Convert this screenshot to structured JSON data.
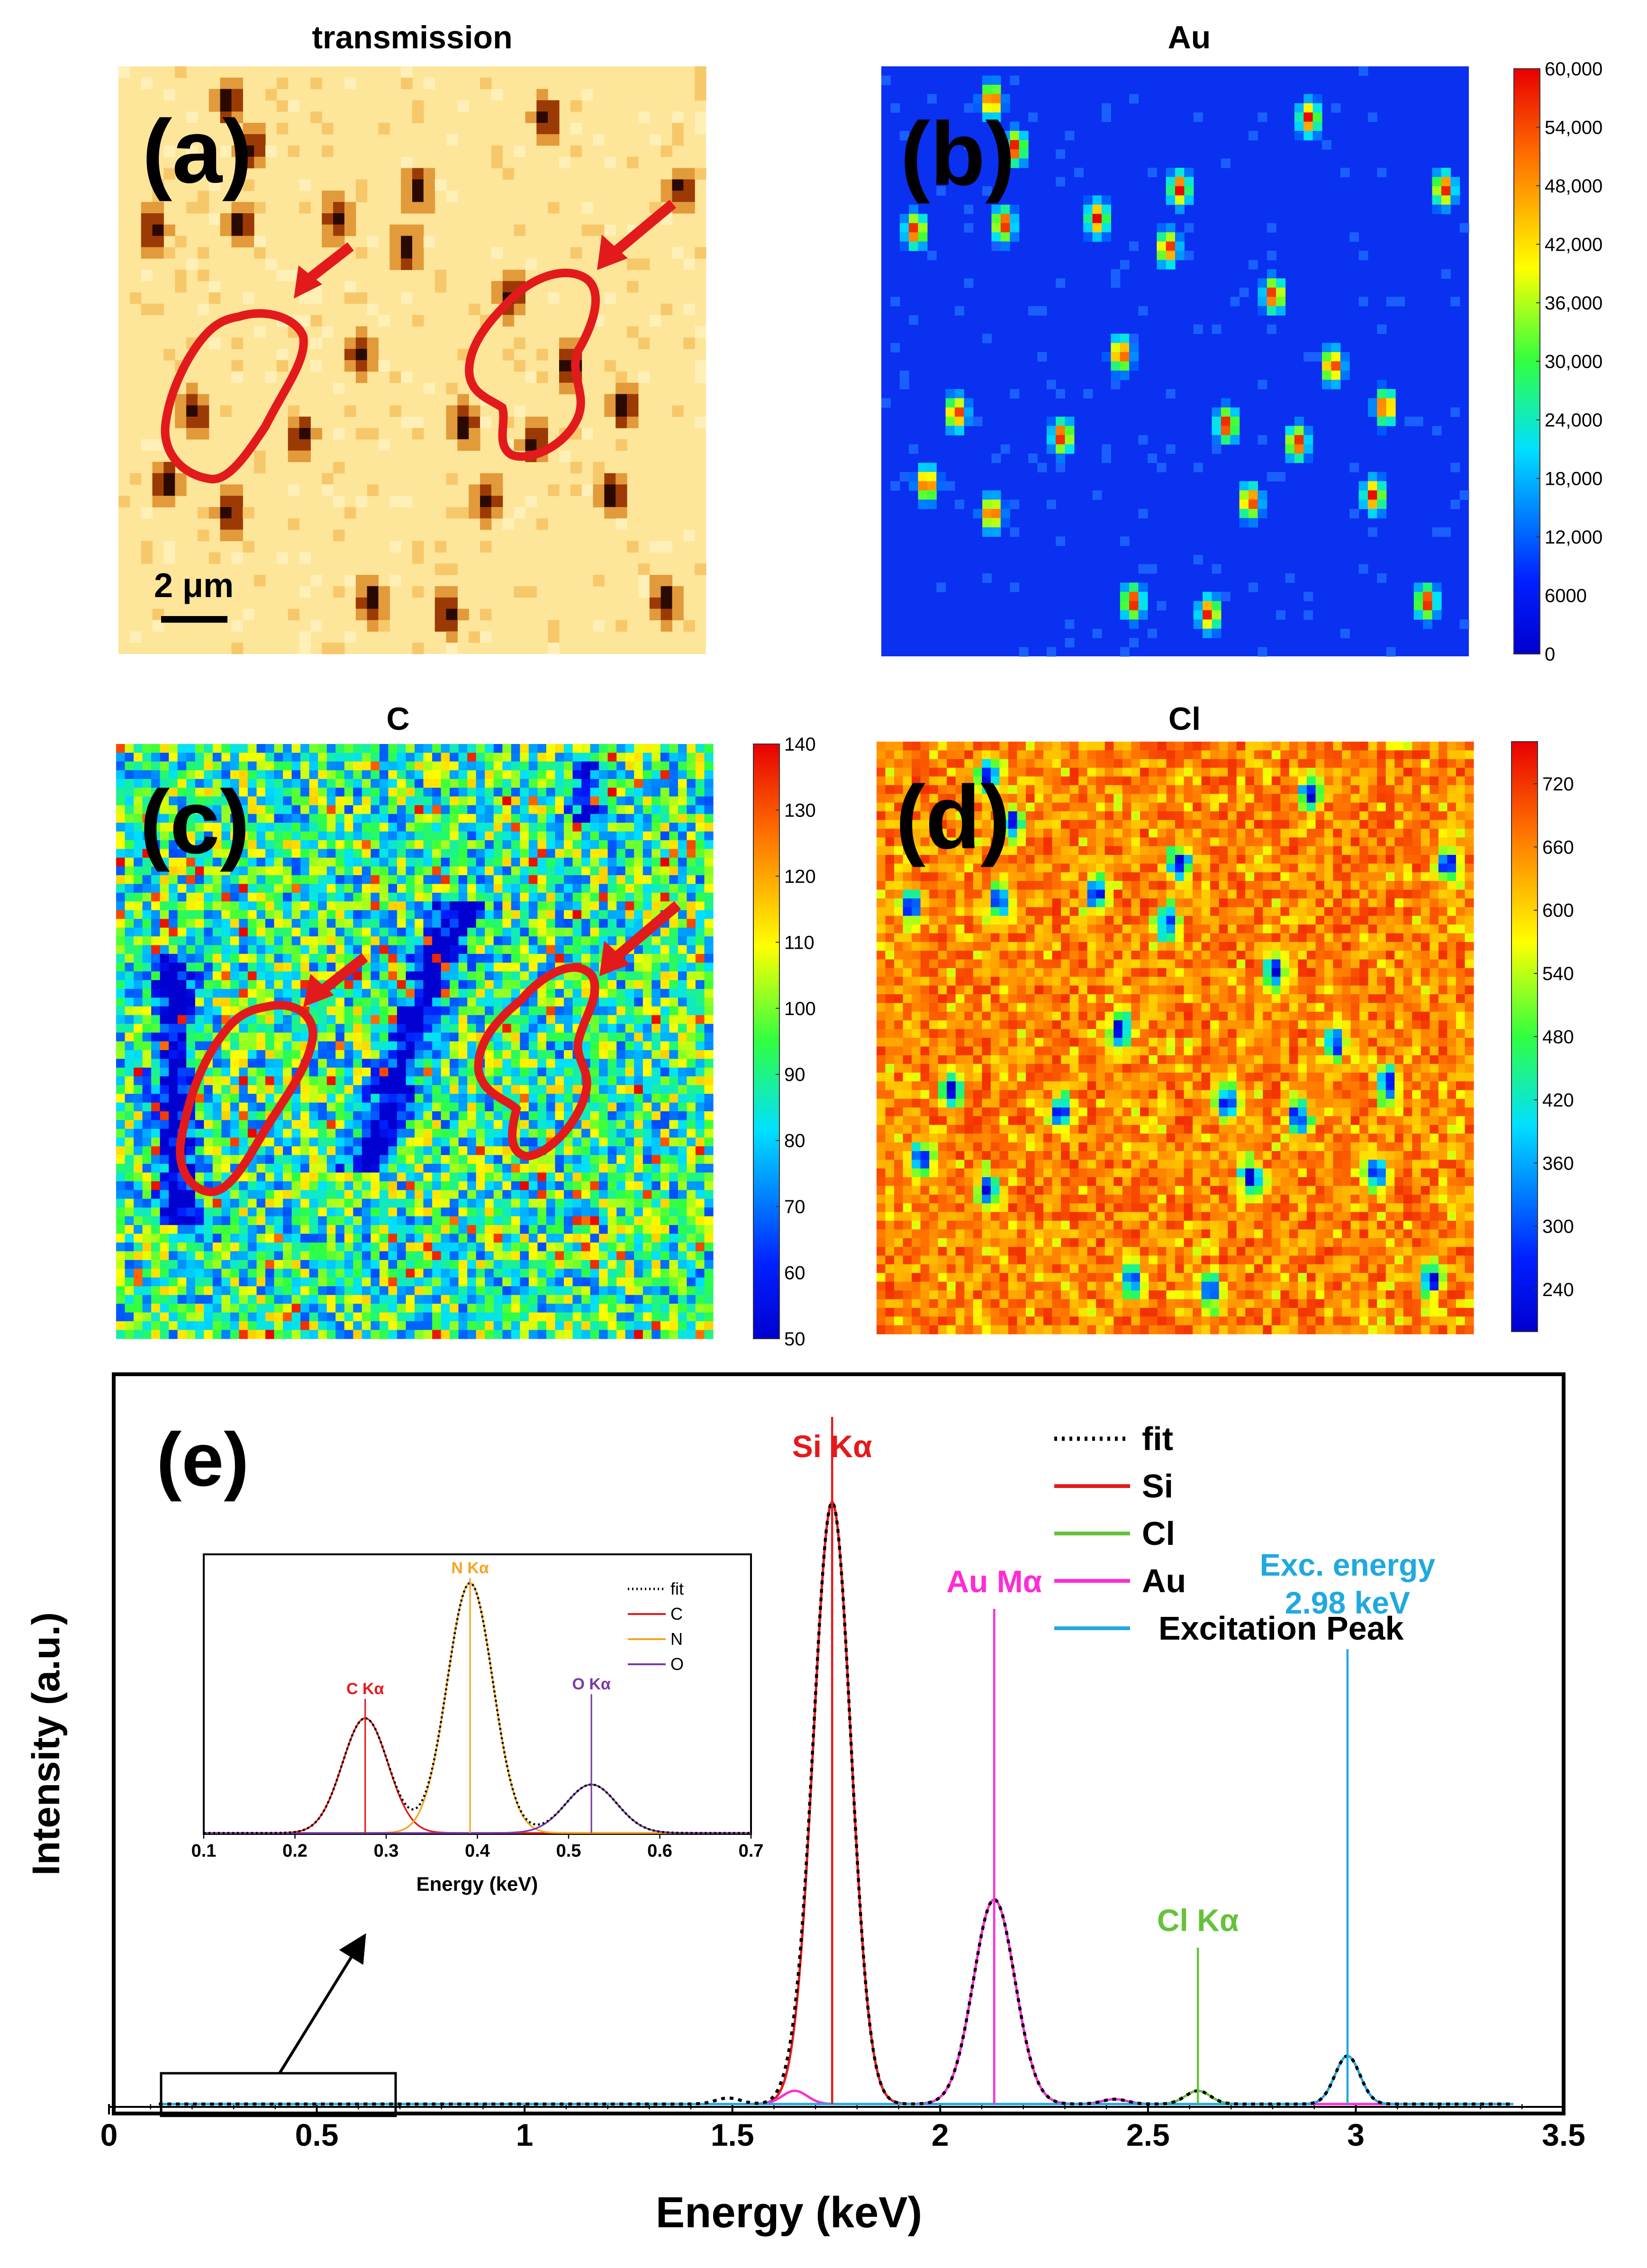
{
  "panels": {
    "a": {
      "title": "transmission",
      "label": "(a)",
      "scalebar": "2 μm"
    },
    "b": {
      "title": "Au",
      "label": "(b)"
    },
    "c": {
      "title": "C",
      "label": "(c)"
    },
    "d": {
      "title": "Cl",
      "label": "(d)"
    },
    "e": {
      "label": "(e)"
    }
  },
  "colorbars": {
    "b": {
      "ticks": [
        "0",
        "6000",
        "12,000",
        "18,000",
        "24,000",
        "30,000",
        "36,000",
        "42,000",
        "48,000",
        "54,000",
        "60,000"
      ],
      "min": 0,
      "max": 60000
    },
    "c": {
      "ticks": [
        "50",
        "60",
        "70",
        "80",
        "90",
        "100",
        "110",
        "120",
        "130",
        "140"
      ],
      "min": 50,
      "max": 140
    },
    "d": {
      "ticks": [
        "240",
        "300",
        "360",
        "420",
        "480",
        "540",
        "600",
        "660",
        "720"
      ],
      "min": 200,
      "max": 760
    }
  },
  "chart_data": [
    {
      "type": "line",
      "id": "main-spectrum",
      "xlabel": "Energy (keV)",
      "ylabel": "Intensity (a.u.)",
      "xlim": [
        0,
        3.5
      ],
      "ylim": [
        0,
        1.0
      ],
      "xticks": [
        "0",
        "0.5",
        "1",
        "1.5",
        "2",
        "2.5",
        "3",
        "3.5"
      ],
      "series": [
        {
          "name": "fit",
          "color": "#000000",
          "style": "dotted"
        },
        {
          "name": "Si",
          "color": "#e31a1c",
          "peaks": [
            {
              "center": 1.74,
              "height": 1.0,
              "width": 0.045
            }
          ]
        },
        {
          "name": "Cl",
          "color": "#66c23a",
          "peaks": [
            {
              "center": 2.62,
              "height": 0.022,
              "width": 0.03
            }
          ]
        },
        {
          "name": "Au",
          "color": "#ff2bd6",
          "peaks": [
            {
              "center": 2.13,
              "height": 0.34,
              "width": 0.05
            },
            {
              "center": 1.65,
              "height": 0.022,
              "width": 0.03
            },
            {
              "center": 2.42,
              "height": 0.008,
              "width": 0.03
            }
          ]
        },
        {
          "name": "Excitation Peak",
          "color": "#1fa9e1",
          "peaks": [
            {
              "center": 2.98,
              "height": 0.08,
              "width": 0.03
            }
          ]
        }
      ],
      "annotations": [
        {
          "text": "Si Kα",
          "x": 1.74,
          "color": "#e31a1c"
        },
        {
          "text": "Au Mα",
          "x": 2.13,
          "color": "#ff2bd6"
        },
        {
          "text": "Cl Kα",
          "x": 2.62,
          "color": "#66c23a"
        },
        {
          "text": "Exc. energy",
          "x": 2.98,
          "color": "#1fa9e1"
        },
        {
          "text": "2.98 keV",
          "x": 2.98,
          "color": "#1fa9e1"
        }
      ],
      "legend_labels": [
        "fit",
        "Si",
        "Cl",
        "Au",
        "Excitation Peak"
      ]
    },
    {
      "type": "line",
      "id": "inset-spectrum",
      "xlabel": "Energy (keV)",
      "xlim": [
        0.1,
        0.7
      ],
      "ylim": [
        0,
        1.0
      ],
      "xticks": [
        "0.1",
        "0.2",
        "0.3",
        "0.4",
        "0.5",
        "0.6",
        "0.7"
      ],
      "series": [
        {
          "name": "fit",
          "color": "#000000",
          "style": "dotted"
        },
        {
          "name": "C",
          "color": "#e31a1c",
          "peaks": [
            {
              "center": 0.277,
              "height": 0.45,
              "width": 0.025
            }
          ]
        },
        {
          "name": "N",
          "color": "#f5a623",
          "peaks": [
            {
              "center": 0.392,
              "height": 0.98,
              "width": 0.025
            }
          ]
        },
        {
          "name": "O",
          "color": "#7b3aa6",
          "peaks": [
            {
              "center": 0.525,
              "height": 0.19,
              "width": 0.028
            }
          ]
        }
      ],
      "annotations": [
        {
          "text": "C Kα",
          "x": 0.277,
          "color": "#e31a1c"
        },
        {
          "text": "N Kα",
          "x": 0.392,
          "color": "#f5a623"
        },
        {
          "text": "O Kα",
          "x": 0.525,
          "color": "#7b3aa6"
        }
      ],
      "legend_labels": [
        "fit",
        "C",
        "N",
        "O"
      ]
    }
  ]
}
